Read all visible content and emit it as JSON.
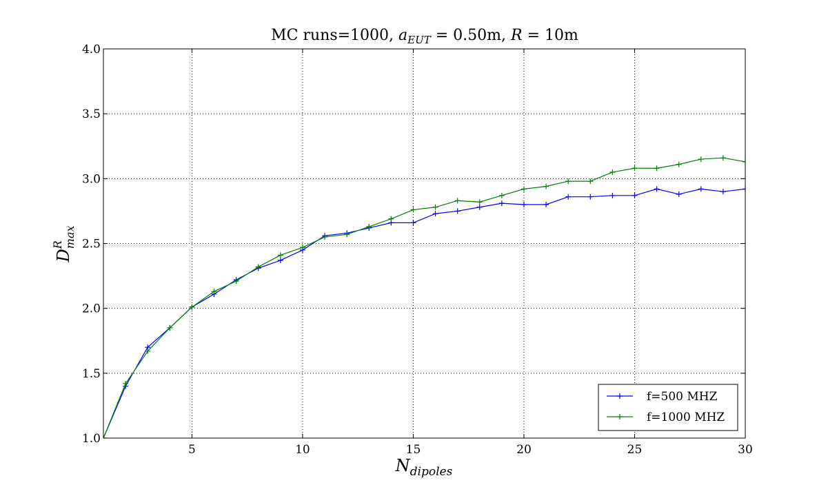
{
  "chart_data": {
    "type": "line",
    "title": "MC runs=1000, a_EUT = 0.50m, R = 10m",
    "title_parts": {
      "prefix": "MC runs=1000, ",
      "a": "a",
      "a_sub": "EUT",
      "a_value": " = 0.50m, ",
      "R": "R",
      "R_value": " = 10m"
    },
    "xlabel": "N_dipoles",
    "xlabel_parts": {
      "base": "N",
      "sub": "dipoles"
    },
    "ylabel": "D^R_max",
    "ylabel_parts": {
      "base": "D",
      "sup": "R",
      "sub": "max"
    },
    "xlim": [
      1,
      30
    ],
    "ylim": [
      1.0,
      4.0
    ],
    "xticks": [
      5,
      10,
      15,
      20,
      25,
      30
    ],
    "xtick_labels": [
      "5",
      "10",
      "15",
      "20",
      "25",
      "30"
    ],
    "yticks": [
      1.0,
      1.5,
      2.0,
      2.5,
      3.0,
      3.5,
      4.0
    ],
    "ytick_labels": [
      "1.0",
      "1.5",
      "2.0",
      "2.5",
      "3.0",
      "3.5",
      "4.0"
    ],
    "grid": true,
    "legend_position": "lower-right",
    "x": [
      1,
      2,
      3,
      4,
      5,
      6,
      7,
      8,
      9,
      10,
      11,
      12,
      13,
      14,
      15,
      16,
      17,
      18,
      19,
      20,
      21,
      22,
      23,
      24,
      25,
      26,
      27,
      28,
      29,
      30
    ],
    "series": [
      {
        "name": "f=500 MHZ",
        "color": "#0000ff",
        "marker": "plus",
        "values": [
          1.0,
          1.4,
          1.7,
          1.85,
          2.01,
          2.11,
          2.22,
          2.31,
          2.37,
          2.45,
          2.56,
          2.58,
          2.62,
          2.66,
          2.66,
          2.73,
          2.75,
          2.78,
          2.81,
          2.8,
          2.8,
          2.86,
          2.86,
          2.87,
          2.87,
          2.92,
          2.88,
          2.92,
          2.9,
          2.92
        ]
      },
      {
        "name": "f=1000 MHZ",
        "color": "#008000",
        "marker": "plus",
        "values": [
          1.0,
          1.42,
          1.67,
          1.85,
          2.01,
          2.13,
          2.21,
          2.32,
          2.41,
          2.47,
          2.55,
          2.57,
          2.63,
          2.69,
          2.76,
          2.78,
          2.83,
          2.82,
          2.87,
          2.92,
          2.94,
          2.98,
          2.98,
          3.05,
          3.08,
          3.08,
          3.11,
          3.15,
          3.16,
          3.13
        ]
      }
    ]
  }
}
